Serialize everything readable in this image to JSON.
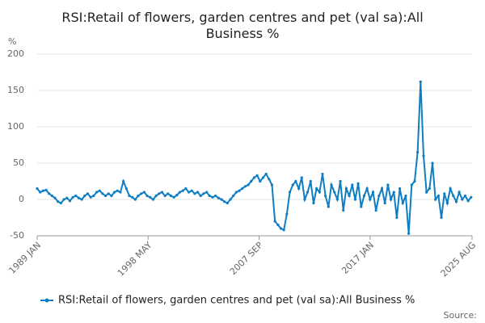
{
  "chart_data": {
    "type": "line",
    "title": "RSI:Retail of flowers, garden centres and pet (val sa):All Business %",
    "y_label": "%",
    "source": "Source:",
    "legend": "bottom",
    "grid": true,
    "ylim": [
      -50,
      200
    ],
    "yticks": [
      -50,
      0,
      50,
      100,
      150,
      200
    ],
    "xlim": [
      1989,
      2025.58
    ],
    "xticks": [
      {
        "value": 1989,
        "label": "1989 JAN"
      },
      {
        "value": 1998.33,
        "label": "1998 MAY"
      },
      {
        "value": 2007.67,
        "label": "2007 SEP"
      },
      {
        "value": 2017,
        "label": "2017 JAN"
      },
      {
        "value": 2025.58,
        "label": "2025 AUG"
      }
    ],
    "x": [
      1989,
      1989.25,
      1989.5,
      1989.75,
      1990,
      1990.25,
      1990.5,
      1990.75,
      1991,
      1991.25,
      1991.5,
      1991.75,
      1992,
      1992.25,
      1992.5,
      1992.75,
      1993,
      1993.25,
      1993.5,
      1993.75,
      1994,
      1994.25,
      1994.5,
      1994.75,
      1995,
      1995.25,
      1995.5,
      1995.75,
      1996,
      1996.25,
      1996.5,
      1996.75,
      1997,
      1997.25,
      1997.5,
      1997.75,
      1998,
      1998.25,
      1998.5,
      1998.75,
      1999,
      1999.25,
      1999.5,
      1999.75,
      2000,
      2000.25,
      2000.5,
      2000.75,
      2001,
      2001.25,
      2001.5,
      2001.75,
      2002,
      2002.25,
      2002.5,
      2002.75,
      2003,
      2003.25,
      2003.5,
      2003.75,
      2004,
      2004.25,
      2004.5,
      2004.75,
      2005,
      2005.25,
      2005.5,
      2005.75,
      2006,
      2006.25,
      2006.5,
      2006.75,
      2007,
      2007.25,
      2007.5,
      2007.75,
      2008,
      2008.25,
      2008.5,
      2008.75,
      2009,
      2009.25,
      2009.5,
      2009.75,
      2010,
      2010.25,
      2010.5,
      2010.75,
      2011,
      2011.25,
      2011.5,
      2011.75,
      2012,
      2012.25,
      2012.5,
      2012.75,
      2013,
      2013.25,
      2013.5,
      2013.75,
      2014,
      2014.25,
      2014.5,
      2014.75,
      2015,
      2015.25,
      2015.5,
      2015.75,
      2016,
      2016.25,
      2016.5,
      2016.75,
      2017,
      2017.25,
      2017.5,
      2017.75,
      2018,
      2018.25,
      2018.5,
      2018.75,
      2019,
      2019.25,
      2019.5,
      2019.75,
      2020,
      2020.25,
      2020.5,
      2020.75,
      2021,
      2021.25,
      2021.5,
      2021.75,
      2022,
      2022.25,
      2022.5,
      2022.75,
      2023,
      2023.25,
      2023.5,
      2023.75,
      2024,
      2024.25,
      2024.5,
      2024.75,
      2025,
      2025.25,
      2025.5
    ],
    "series": [
      {
        "name": "RSI:Retail of flowers, garden centres and pet (val sa):All Business %",
        "color": "#0e7ec2",
        "values": [
          15,
          10,
          12,
          13,
          8,
          5,
          2,
          -3,
          -5,
          0,
          2,
          -2,
          3,
          5,
          2,
          0,
          5,
          8,
          3,
          5,
          10,
          12,
          8,
          5,
          8,
          5,
          10,
          12,
          10,
          25,
          15,
          5,
          3,
          0,
          5,
          8,
          10,
          5,
          3,
          0,
          5,
          8,
          10,
          5,
          8,
          5,
          3,
          6,
          10,
          12,
          15,
          10,
          12,
          8,
          10,
          5,
          8,
          10,
          5,
          3,
          5,
          2,
          0,
          -3,
          -5,
          0,
          5,
          10,
          12,
          15,
          18,
          20,
          25,
          30,
          33,
          25,
          30,
          35,
          28,
          20,
          -30,
          -35,
          -40,
          -42,
          -20,
          10,
          20,
          25,
          15,
          30,
          0,
          10,
          25,
          -5,
          15,
          10,
          35,
          5,
          -10,
          20,
          10,
          0,
          25,
          -15,
          15,
          5,
          20,
          0,
          22,
          -10,
          5,
          15,
          0,
          10,
          -15,
          5,
          15,
          -5,
          20,
          0,
          10,
          -25,
          15,
          -5,
          5,
          -47,
          20,
          25,
          65,
          162,
          60,
          10,
          15,
          50,
          0,
          5,
          -25,
          8,
          -5,
          15,
          5,
          -3,
          10,
          0,
          5,
          -2,
          3
        ]
      }
    ]
  }
}
